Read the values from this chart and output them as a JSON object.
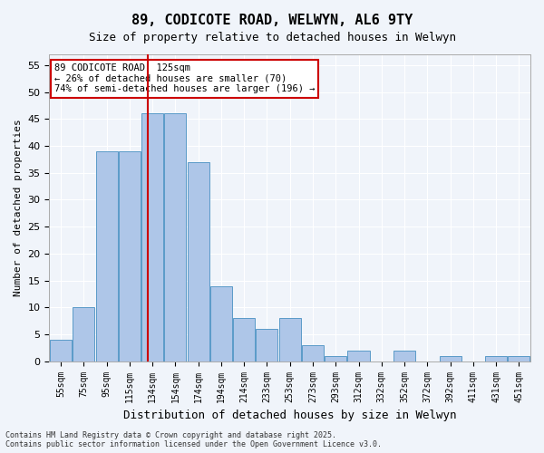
{
  "title": "89, CODICOTE ROAD, WELWYN, AL6 9TY",
  "subtitle": "Size of property relative to detached houses in Welwyn",
  "xlabel": "Distribution of detached houses by size in Welwyn",
  "ylabel": "Number of detached properties",
  "categories": [
    "55sqm",
    "75sqm",
    "95sqm",
    "115sqm",
    "134sqm",
    "154sqm",
    "174sqm",
    "194sqm",
    "214sqm",
    "233sqm",
    "253sqm",
    "273sqm",
    "293sqm",
    "312sqm",
    "332sqm",
    "352sqm",
    "372sqm",
    "392sqm",
    "411sqm",
    "431sqm",
    "451sqm"
  ],
  "values": [
    4,
    10,
    39,
    39,
    46,
    46,
    37,
    14,
    8,
    6,
    8,
    3,
    1,
    2,
    0,
    2,
    0,
    1,
    0,
    1,
    1
  ],
  "bar_color": "#aec6e8",
  "bar_edge_color": "#5a9ac8",
  "background_color": "#f0f4fa",
  "grid_color": "#ffffff",
  "red_line_x": 3.8,
  "annotation_text": "89 CODICOTE ROAD: 125sqm\n← 26% of detached houses are smaller (70)\n74% of semi-detached houses are larger (196) →",
  "annotation_box_color": "#ffffff",
  "annotation_box_edge_color": "#cc0000",
  "footer_text": "Contains HM Land Registry data © Crown copyright and database right 2025.\nContains public sector information licensed under the Open Government Licence v3.0.",
  "ylim": [
    0,
    57
  ],
  "yticks": [
    0,
    5,
    10,
    15,
    20,
    25,
    30,
    35,
    40,
    45,
    50,
    55
  ]
}
